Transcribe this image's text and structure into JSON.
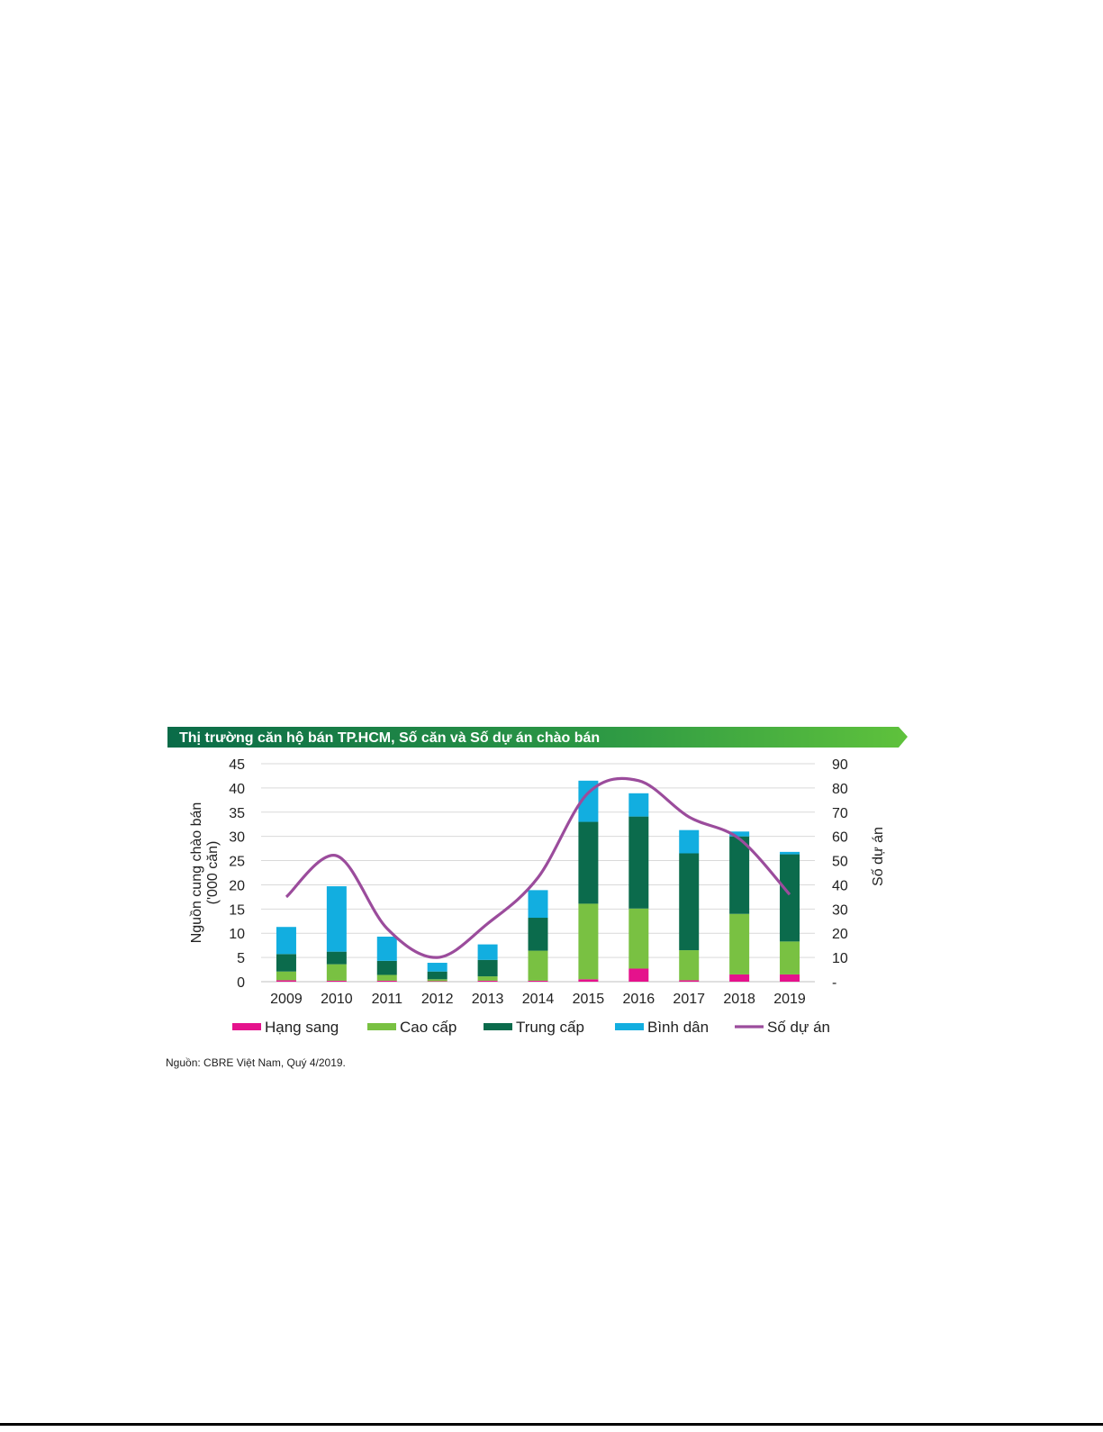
{
  "page": {
    "source_note": "Nguồn: CBRE Việt Nam, Quý 4/2019."
  },
  "chart_data": {
    "type": "bar",
    "stacked": true,
    "title": "Thị trường căn hộ bán TP.HCM, Số căn và Số dự án chào bán",
    "categories": [
      "2009",
      "2010",
      "2011",
      "2012",
      "2013",
      "2014",
      "2015",
      "2016",
      "2017",
      "2018",
      "2019"
    ],
    "y_left": {
      "label_line1": "Nguồn cung chào bán",
      "label_line2": "('000 căn)",
      "range": [
        0,
        45
      ],
      "ticks": [
        "0",
        "5",
        "10",
        "15",
        "20",
        "25",
        "30",
        "35",
        "40",
        "45"
      ]
    },
    "y_right": {
      "label": "Số dự án",
      "range": [
        0,
        90
      ],
      "ticks": [
        "-",
        "10",
        "20",
        "30",
        "40",
        "50",
        "60",
        "70",
        "80",
        "90"
      ]
    },
    "grid": true,
    "legend_position": "bottom",
    "series": [
      {
        "name": "Hạng sang",
        "kind": "bar",
        "axis": "left",
        "color": "#e5128c",
        "values": [
          0.3,
          0.2,
          0.2,
          0.1,
          0.2,
          0.2,
          0.5,
          2.7,
          0.3,
          1.5,
          1.5
        ]
      },
      {
        "name": "Cao cấp",
        "kind": "bar",
        "axis": "left",
        "color": "#79c142",
        "values": [
          1.8,
          3.4,
          1.2,
          0.4,
          0.9,
          6.2,
          15.6,
          12.4,
          6.2,
          12.5,
          6.8
        ]
      },
      {
        "name": "Trung cấp",
        "kind": "bar",
        "axis": "left",
        "color": "#0b6b4c",
        "values": [
          3.6,
          2.6,
          2.9,
          1.6,
          3.4,
          6.8,
          16.9,
          19.0,
          20.0,
          16.0,
          18.0
        ]
      },
      {
        "name": "Bình dân",
        "kind": "bar",
        "axis": "left",
        "color": "#12aee0",
        "values": [
          5.6,
          13.5,
          5.0,
          1.8,
          3.2,
          5.7,
          8.5,
          4.8,
          4.8,
          1.0,
          0.5
        ]
      },
      {
        "name": "Số dự án",
        "kind": "line",
        "axis": "right",
        "color": "#9b4c9c",
        "values": [
          35,
          52,
          22,
          10,
          24,
          43,
          78,
          83,
          68,
          59,
          36
        ]
      }
    ]
  }
}
